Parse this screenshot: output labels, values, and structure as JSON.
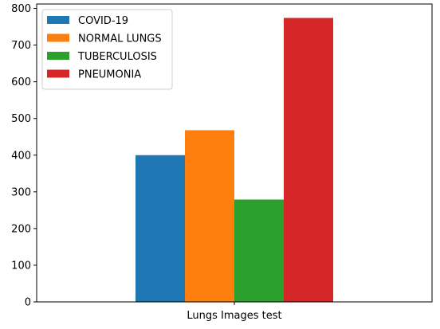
{
  "chart_data": {
    "type": "bar",
    "categories": [
      "Lungs Images test"
    ],
    "series": [
      {
        "name": "COVID-19",
        "values": [
          400
        ],
        "color": "#1f77b4"
      },
      {
        "name": "NORMAL LUNGS",
        "values": [
          468
        ],
        "color": "#ff7f0e"
      },
      {
        "name": "TUBERCULOSIS",
        "values": [
          279
        ],
        "color": "#2ca02c"
      },
      {
        "name": "PNEUMONIA",
        "values": [
          774
        ],
        "color": "#d62728"
      }
    ],
    "ylim": [
      0,
      812
    ],
    "yticks": [
      0,
      100,
      200,
      300,
      400,
      500,
      600,
      700,
      800
    ],
    "legend": "top-left",
    "grid": false
  }
}
